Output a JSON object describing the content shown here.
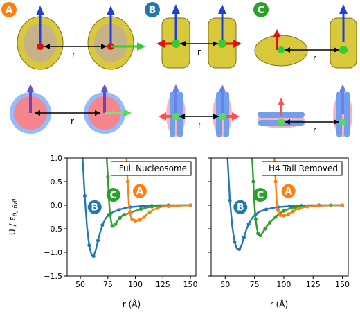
{
  "panel_labels": [
    {
      "letter": "A",
      "color": "#ff7f0e"
    },
    {
      "letter": "B",
      "color": "#1f77b4"
    },
    {
      "letter": "C",
      "color": "#2ca02c"
    }
  ],
  "distance_label": "r",
  "chart_data": [
    {
      "type": "line",
      "title": "Full Nucleosome",
      "xlabel": "r (Å)",
      "ylabel": "U / ε0, full",
      "ylabel_parts": {
        "main": "U / ε",
        "sub": "0, full"
      },
      "xlim": [
        38,
        155
      ],
      "ylim": [
        -1.5,
        1.0
      ],
      "xticks": [
        50,
        75,
        100,
        125,
        150
      ],
      "yticks": [
        -1.5,
        -1.0,
        -0.5,
        0.0,
        0.5,
        1.0
      ],
      "ytick_labels": [
        "−1.5",
        "−1.0",
        "−0.5",
        "0.0",
        "0.5",
        "1.0"
      ],
      "series": [
        {
          "name": "B",
          "color": "#1f77b4",
          "x": [
            52,
            54,
            56,
            58,
            60,
            62,
            64,
            66,
            68,
            70,
            73,
            76,
            80,
            85,
            90,
            95,
            100,
            105,
            110,
            115,
            120,
            130,
            140,
            150
          ],
          "y": [
            1.0,
            0.2,
            -0.45,
            -0.85,
            -1.05,
            -1.08,
            -0.95,
            -0.75,
            -0.57,
            -0.42,
            -0.28,
            -0.2,
            -0.14,
            -0.1,
            -0.06,
            -0.04,
            -0.03,
            -0.02,
            -0.01,
            -0.01,
            0.0,
            0.0,
            0.0,
            0.0
          ],
          "label_at": [
            63,
            -0.04
          ]
        },
        {
          "name": "C",
          "color": "#2ca02c",
          "x": [
            74,
            75,
            76,
            77,
            78,
            79,
            80,
            82,
            84,
            86,
            88,
            90,
            93,
            96,
            100,
            105,
            110,
            115,
            120,
            130,
            140,
            150
          ],
          "y": [
            1.0,
            0.6,
            0.1,
            -0.2,
            -0.35,
            -0.44,
            -0.45,
            -0.4,
            -0.32,
            -0.27,
            -0.22,
            -0.2,
            -0.18,
            -0.15,
            -0.12,
            -0.08,
            -0.05,
            -0.03,
            -0.02,
            -0.01,
            0.0,
            0.0
          ],
          "label_at": [
            80,
            0.22
          ]
        },
        {
          "name": "A",
          "color": "#ff7f0e",
          "x": [
            92,
            93,
            94,
            95,
            96,
            97,
            98,
            100,
            102,
            104,
            106,
            108,
            110,
            113,
            116,
            120,
            125,
            130,
            140,
            150
          ],
          "y": [
            1.0,
            0.5,
            0.05,
            -0.15,
            -0.25,
            -0.3,
            -0.32,
            -0.33,
            -0.33,
            -0.31,
            -0.28,
            -0.25,
            -0.2,
            -0.15,
            -0.1,
            -0.06,
            -0.03,
            -0.02,
            -0.01,
            0.0
          ],
          "label_at": [
            104,
            0.3
          ]
        }
      ]
    },
    {
      "type": "line",
      "title": "H4 Tail Removed",
      "xlabel": "r (Å)",
      "ylabel": "",
      "xlim": [
        38,
        155
      ],
      "ylim": [
        -1.5,
        1.0
      ],
      "xticks": [
        50,
        75,
        100,
        125,
        150
      ],
      "yticks": [
        -1.5,
        -1.0,
        -0.5,
        0.0,
        0.5,
        1.0
      ],
      "series": [
        {
          "name": "B",
          "color": "#1f77b4",
          "x": [
            52,
            54,
            56,
            58,
            60,
            62,
            64,
            66,
            68,
            70,
            73,
            76,
            80,
            85,
            90,
            95,
            100,
            105,
            110,
            115,
            120,
            130,
            140,
            150
          ],
          "y": [
            1.0,
            0.1,
            -0.45,
            -0.78,
            -0.92,
            -0.93,
            -0.85,
            -0.68,
            -0.52,
            -0.4,
            -0.27,
            -0.19,
            -0.13,
            -0.09,
            -0.06,
            -0.04,
            -0.03,
            -0.02,
            -0.01,
            -0.01,
            0.0,
            0.0,
            0.0,
            0.0
          ],
          "label_at": [
            63,
            -0.04
          ]
        },
        {
          "name": "C",
          "color": "#2ca02c",
          "x": [
            73,
            74,
            75,
            76,
            77,
            78,
            79,
            80,
            82,
            84,
            86,
            88,
            90,
            93,
            96,
            100,
            105,
            110,
            115,
            120,
            130,
            140,
            150
          ],
          "y": [
            1.0,
            0.5,
            0.0,
            -0.3,
            -0.48,
            -0.6,
            -0.65,
            -0.64,
            -0.58,
            -0.5,
            -0.43,
            -0.37,
            -0.32,
            -0.25,
            -0.18,
            -0.12,
            -0.07,
            -0.04,
            -0.03,
            -0.02,
            -0.01,
            0.0,
            0.0
          ],
          "label_at": [
            80,
            0.22
          ]
        },
        {
          "name": "A",
          "color": "#ff7f0e",
          "x": [
            92,
            93,
            94,
            95,
            96,
            97,
            98,
            100,
            102,
            104,
            106,
            108,
            110,
            113,
            116,
            120,
            125,
            130,
            140,
            150
          ],
          "y": [
            1.0,
            0.5,
            0.05,
            -0.1,
            -0.18,
            -0.21,
            -0.22,
            -0.22,
            -0.21,
            -0.19,
            -0.16,
            -0.13,
            -0.1,
            -0.07,
            -0.05,
            -0.03,
            -0.02,
            -0.01,
            0.0,
            0.0
          ],
          "label_at": [
            104,
            0.3
          ]
        }
      ]
    }
  ]
}
